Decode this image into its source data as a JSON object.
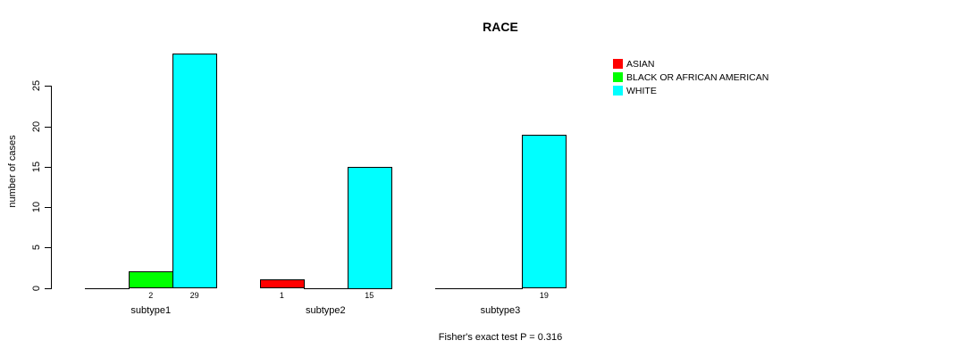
{
  "figure": {
    "background": "#FFFFFF",
    "text_color": "#000000",
    "axis_color": "#000000"
  },
  "chart_data": {
    "type": "bar",
    "title": "RACE",
    "ylabel": "number of cases",
    "xlabel": "",
    "footer": "Fisher's exact test P = 0.316",
    "categories": [
      "subtype1",
      "subtype2",
      "subtype3"
    ],
    "series": [
      {
        "name": "ASIAN",
        "color": "#FF0000",
        "values": [
          0,
          1,
          0
        ]
      },
      {
        "name": "BLACK OR AFRICAN AMERICAN",
        "color": "#00FF00",
        "values": [
          2,
          0,
          0
        ]
      },
      {
        "name": "WHITE",
        "color": "#00FFFF",
        "values": [
          29,
          15,
          19
        ]
      }
    ],
    "bar_value_labels": [
      [
        "",
        "2",
        "29"
      ],
      [
        "1",
        "",
        "15"
      ],
      [
        "",
        "",
        "19"
      ]
    ],
    "yticks": [
      0,
      5,
      10,
      15,
      20,
      25
    ],
    "ylim": [
      0,
      29
    ],
    "grid": false,
    "legend_position": "top-right",
    "legend_entries": [
      "ASIAN",
      "BLACK OR AFRICAN AMERICAN",
      "WHITE"
    ]
  }
}
